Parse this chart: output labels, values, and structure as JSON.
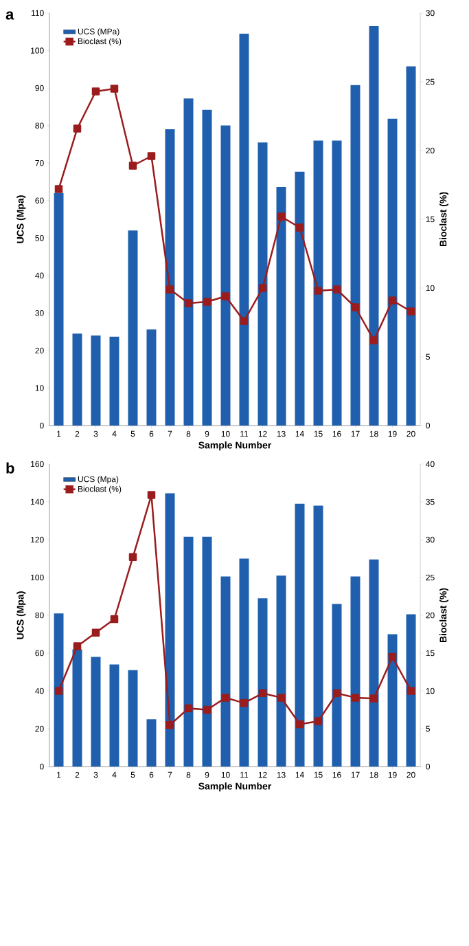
{
  "chart_data": [
    {
      "type": "bar",
      "title": "a",
      "xlabel": "Sample Number",
      "ylabel": "UCS (Mpa)",
      "y2label": "Bioclast (%)",
      "categories": [
        "1",
        "2",
        "3",
        "4",
        "5",
        "6",
        "7",
        "8",
        "9",
        "10",
        "11",
        "12",
        "13",
        "14",
        "15",
        "16",
        "17",
        "18",
        "19",
        "20"
      ],
      "ylim": [
        0,
        110
      ],
      "yticks": [
        0,
        10,
        20,
        30,
        40,
        50,
        60,
        70,
        80,
        90,
        100,
        110
      ],
      "y2lim": [
        0,
        30
      ],
      "y2ticks": [
        0,
        5,
        10,
        15,
        20,
        25,
        30
      ],
      "legend": "top left",
      "marker": "square",
      "series": [
        {
          "name": "UCS (MPa)",
          "color": "#1f5fad",
          "values": [
            62,
            24.5,
            24,
            23.7,
            52,
            25.6,
            79,
            87.2,
            84.2,
            80,
            104.5,
            75.5,
            63.6,
            67.7,
            76,
            76,
            90.8,
            106.5,
            81.8,
            95.8
          ]
        },
        {
          "name": "Bioclast (%)",
          "type": "line",
          "axis": "y2",
          "color": "#9b1c1c",
          "values": [
            17.2,
            21.6,
            24.3,
            24.5,
            18.9,
            19.6,
            9.9,
            8.9,
            9.0,
            9.4,
            7.6,
            10.0,
            15.2,
            14.4,
            9.8,
            9.9,
            8.6,
            6.2,
            9.1,
            8.3
          ]
        }
      ]
    },
    {
      "type": "bar",
      "title": "b",
      "xlabel": "Sample Number",
      "ylabel": "UCS (Mpa)",
      "y2label": "Bioclast (%)",
      "categories": [
        "1",
        "2",
        "3",
        "4",
        "5",
        "6",
        "7",
        "8",
        "9",
        "10",
        "11",
        "12",
        "13",
        "14",
        "15",
        "16",
        "17",
        "18",
        "19",
        "20"
      ],
      "ylim": [
        0,
        160
      ],
      "yticks": [
        0,
        20,
        40,
        60,
        80,
        100,
        120,
        140,
        160
      ],
      "y2lim": [
        0,
        40
      ],
      "y2ticks": [
        0,
        5,
        10,
        15,
        20,
        25,
        30,
        35,
        40
      ],
      "legend": "top left",
      "marker": "square",
      "series": [
        {
          "name": "UCS (Mpa)",
          "color": "#1f5fad",
          "values": [
            81,
            62,
            58,
            54,
            51,
            25,
            144.5,
            121.5,
            121.5,
            100.5,
            110,
            89,
            101,
            139,
            138,
            86,
            100.5,
            109.5,
            70,
            80.5
          ]
        },
        {
          "name": "Bioclast (%)",
          "type": "line",
          "axis": "y2",
          "color": "#9b1c1c",
          "values": [
            10,
            15.9,
            17.7,
            19.5,
            27.7,
            35.9,
            5.5,
            7.7,
            7.5,
            9.1,
            8.4,
            9.7,
            9.1,
            5.6,
            6,
            9.7,
            9.1,
            9,
            14.5,
            10
          ]
        }
      ]
    }
  ]
}
